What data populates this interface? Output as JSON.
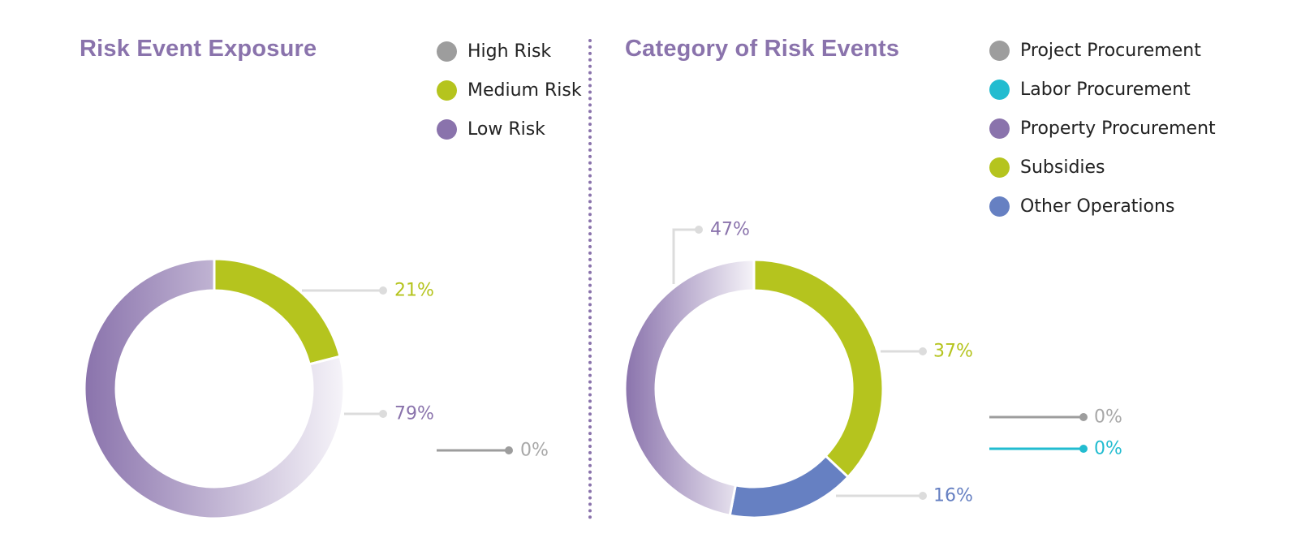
{
  "colors": {
    "title": "#8a73ac",
    "gray": "#9d9d9d",
    "green": "#b5c41e",
    "purple": "#8a73ac",
    "cyan": "#22bcd0",
    "blue": "#6680c2",
    "leader": "#dcdcdc"
  },
  "chart_data": [
    {
      "type": "pie",
      "title": "Risk Event Exposure",
      "legend_position": "top-right",
      "slices": [
        {
          "name": "High Risk",
          "value": 0,
          "label": "0%",
          "color": "#9d9d9d"
        },
        {
          "name": "Medium Risk",
          "value": 21,
          "label": "21%",
          "color": "#b5c41e"
        },
        {
          "name": "Low Risk",
          "value": 79,
          "label": "79%",
          "color": "#8a73ac"
        }
      ]
    },
    {
      "type": "pie",
      "title": "Category of Risk Events",
      "legend_position": "top-right",
      "slices": [
        {
          "name": "Project Procurement",
          "value": 0,
          "label": "0%",
          "color": "#9d9d9d"
        },
        {
          "name": "Labor Procurement",
          "value": 0,
          "label": "0%",
          "color": "#22bcd0"
        },
        {
          "name": "Property Procurement",
          "value": 47,
          "label": "47%",
          "color": "#8a73ac"
        },
        {
          "name": "Subsidies",
          "value": 37,
          "label": "37%",
          "color": "#b5c41e"
        },
        {
          "name": "Other Operations",
          "value": 16,
          "label": "16%",
          "color": "#6680c2"
        }
      ]
    }
  ]
}
